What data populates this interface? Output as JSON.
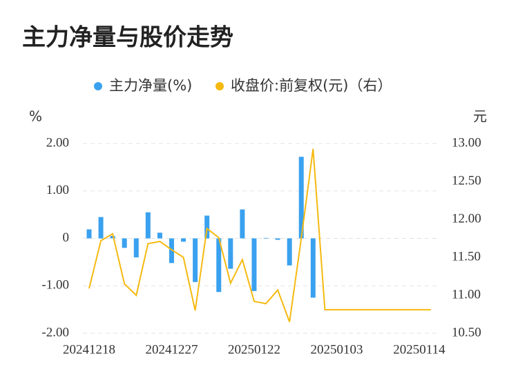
{
  "chart_data": {
    "type": "bar_line",
    "title": "主力净量与股价走势",
    "y_label": "%",
    "y2_label": "元",
    "categories": [
      "20241218",
      null,
      null,
      null,
      null,
      null,
      null,
      "20241227",
      null,
      null,
      null,
      null,
      null,
      null,
      "20250122",
      null,
      null,
      null,
      null,
      null,
      null,
      "20250103",
      null,
      null,
      null,
      null,
      null,
      null,
      "20250114",
      null
    ],
    "series": [
      {
        "name": "主力净量(%)",
        "color": "#3aa1ef",
        "type": "bar",
        "values": [
          0.19,
          0.45,
          0.05,
          -0.2,
          -0.4,
          0.55,
          0.12,
          -0.52,
          -0.07,
          -0.92,
          0.48,
          -1.13,
          -0.64,
          0.61,
          -1.11,
          0.01,
          -0.03,
          -0.57,
          1.72,
          -1.25,
          null,
          null,
          null,
          null,
          null,
          null,
          null,
          null,
          null,
          null
        ]
      },
      {
        "name": "收盘价:前复权(元)（右）",
        "color": "#f5b90f",
        "type": "line",
        "axis": "y2",
        "values": [
          11.09,
          11.72,
          11.81,
          11.15,
          11.0,
          11.68,
          11.71,
          11.6,
          11.5,
          10.8,
          11.88,
          11.76,
          11.16,
          11.47,
          10.92,
          10.89,
          11.07,
          10.65,
          11.75,
          12.93,
          10.81,
          10.81,
          10.81,
          10.81,
          10.81,
          10.81,
          10.81,
          10.81,
          10.81,
          10.81
        ]
      }
    ],
    "ylim": [
      -2,
      2
    ],
    "yticks": [
      {
        "value": 2,
        "label": "2.00"
      },
      {
        "value": 1,
        "label": "1.00"
      },
      0,
      {
        "value": -1,
        "label": "-1.00"
      },
      {
        "value": -2,
        "label": "-2.00"
      }
    ],
    "y2lim": [
      10.5,
      13
    ],
    "y2ticks": [
      {
        "value": 13,
        "label": "13.00"
      },
      {
        "value": 12.5,
        "label": "12.50"
      },
      {
        "value": 12,
        "label": "12.00"
      },
      {
        "value": 11.5,
        "label": "11.50"
      },
      {
        "value": 11,
        "label": "11.00"
      },
      {
        "value": 10.5,
        "label": "10.50"
      }
    ],
    "grid": true
  }
}
